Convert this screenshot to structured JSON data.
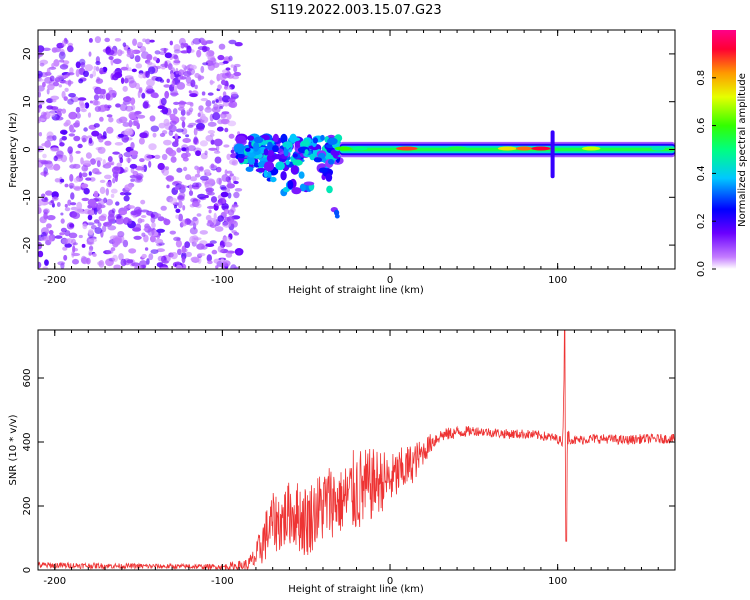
{
  "title": "S119.2022.003.15.07.G23",
  "chart_data": [
    {
      "type": "heatmap",
      "xlabel": "Height of straight line (km)",
      "ylabel": "Frequency (Hz)",
      "xlim": [
        -210,
        170
      ],
      "ylim": [
        -25,
        25
      ],
      "xticks": [
        -200,
        -100,
        0,
        100
      ],
      "yticks": [
        -20,
        -10,
        0,
        10,
        20
      ],
      "colorbar": {
        "label": "Normalized spectral amplitude",
        "range": [
          0,
          1
        ],
        "ticks": [
          "0.0",
          "0.2",
          "0.4",
          "0.6",
          "0.8"
        ],
        "colormap": "rainbow (white/violet low → red/magenta high)"
      },
      "regions": [
        {
          "x_range": [
            -210,
            -90
          ],
          "freq_range": [
            -25,
            23
          ],
          "description": "broadband noise"
        },
        {
          "x_range": [
            -90,
            -30
          ],
          "freq_center": 0,
          "scatter_down_to": -14
        },
        {
          "x_range": [
            -30,
            170
          ],
          "freq_center": 0,
          "band_halfwidth": 1.5
        }
      ],
      "feature_at_x": 97,
      "feature_freq_range": [
        -6,
        4
      ]
    },
    {
      "type": "line",
      "xlabel": "Height of straight line (km)",
      "ylabel": "SNR (10 * v/v)",
      "xlim": [
        -210,
        170
      ],
      "ylim": [
        0,
        750
      ],
      "xticks": [
        -200,
        -100,
        0,
        100
      ],
      "yticks": [
        0,
        200,
        400,
        600
      ],
      "color": "#ee3333",
      "series": [
        {
          "x": [
            -210,
            -150,
            -100,
            -85,
            -80,
            -75,
            -70,
            -65,
            -60,
            -55,
            -50,
            -45,
            -40,
            -35,
            -30,
            -25,
            -20,
            -15,
            -10,
            -5,
            0,
            5,
            10,
            15,
            20,
            25,
            30,
            40,
            50,
            60,
            70,
            80,
            90,
            100,
            103,
            104,
            105,
            106,
            108,
            110,
            120,
            130,
            140,
            150,
            160,
            170
          ],
          "y": [
            15,
            12,
            10,
            15,
            40,
            100,
            150,
            150,
            180,
            170,
            150,
            180,
            200,
            220,
            210,
            230,
            250,
            250,
            270,
            280,
            280,
            300,
            320,
            340,
            370,
            400,
            420,
            430,
            435,
            430,
            425,
            425,
            420,
            410,
            400,
            650,
            200,
            420,
            410,
            405,
            410,
            410,
            405,
            410,
            410,
            410
          ],
          "noise_amplitude": [
            10,
            8,
            8,
            20,
            40,
            80,
            90,
            100,
            100,
            110,
            120,
            110,
            120,
            120,
            100,
            120,
            140,
            130,
            110,
            100,
            80,
            80,
            70,
            60,
            40,
            30,
            20,
            20,
            15,
            15,
            15,
            15,
            15,
            15,
            15,
            0,
            0,
            30,
            15,
            15,
            15,
            15,
            15,
            15,
            15,
            15
          ]
        }
      ]
    }
  ]
}
